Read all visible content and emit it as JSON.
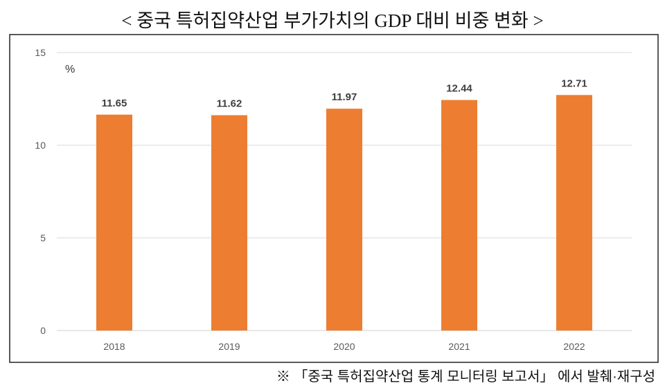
{
  "title": "< 중국 특허집약산업 부가가치의 GDP 대비 비중 변화 >",
  "source": "※ 「중국 특허집약산업 통계 모니터링 보고서」 에서 발췌·재구성",
  "chart_data": {
    "type": "bar",
    "title": "< 중국 특허집약산업 부가가치의 GDP 대비 비중 변화 >",
    "ylabel": "%",
    "xlabel": "",
    "categories": [
      "2018",
      "2019",
      "2020",
      "2021",
      "2022"
    ],
    "values": [
      11.65,
      11.62,
      11.97,
      12.44,
      12.71
    ],
    "data_labels": [
      "11.65",
      "11.62",
      "11.97",
      "12.44",
      "12.71"
    ],
    "ylim": [
      0,
      15
    ],
    "yticks": [
      "0",
      "5",
      "10",
      "15"
    ],
    "grid": true,
    "legend": "none",
    "bar_color": "#ED7D31"
  }
}
